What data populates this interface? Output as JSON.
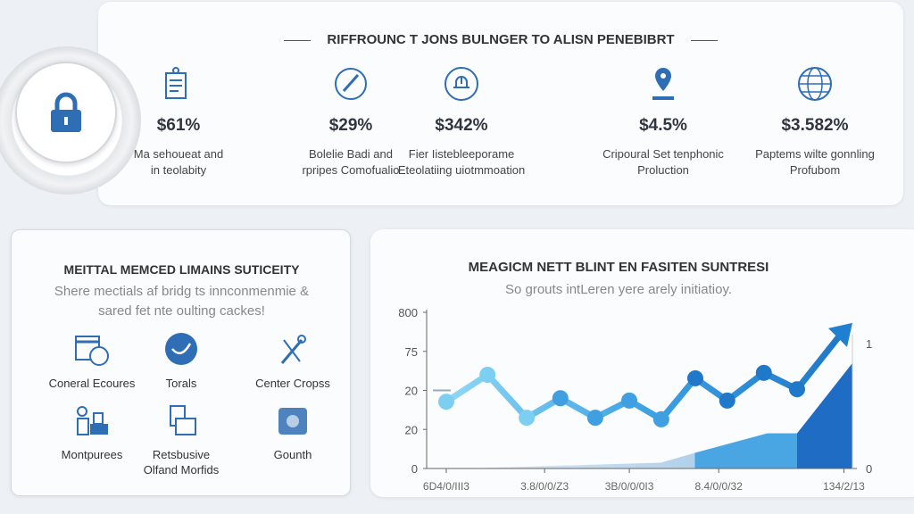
{
  "header": {
    "title": "RIFFROUNC T JONS BULNGER TO ALISN PENEBIBRT"
  },
  "stats": [
    {
      "icon": "document-icon",
      "value": "$61%",
      "desc": [
        "Ma sehoueat and",
        "in teolabity"
      ]
    },
    {
      "icon": "gauge-icon",
      "value": "$29%",
      "desc": [
        "Bolelie Badi and",
        "rpripes Comofualio"
      ]
    },
    {
      "icon": "cloud-upload-icon",
      "value": "$342%",
      "desc": [
        "Fier Iistebleeporame",
        "Eteolatiing uiotmmoation"
      ]
    },
    {
      "icon": "location-pin-icon",
      "value": "$4.5%",
      "desc": [
        "Cripoural Set tenphonic",
        "Proluction"
      ]
    },
    {
      "icon": "globe-icon",
      "value": "$3.582%",
      "desc": [
        "Paptems wilte gonnling",
        "Profubom"
      ]
    }
  ],
  "left_panel": {
    "title": "MEITTAL MEMCED LIMAINS SUTICEITY",
    "subtitle": [
      "Shere mectials af bridg ts innconmenmie &",
      "sared fet nte oulting cackes!"
    ],
    "features": [
      {
        "icon": "calendar-icon",
        "label": [
          "Coneral Ecoures"
        ]
      },
      {
        "icon": "bird-badge-icon",
        "label": [
          "Torals"
        ]
      },
      {
        "icon": "tools-icon",
        "label": [
          "Center Cropss"
        ]
      },
      {
        "icon": "devices-icon",
        "label": [
          "Montpurees"
        ]
      },
      {
        "icon": "files-icon",
        "label": [
          "Retsbusive",
          "Olfand Morfids"
        ]
      },
      {
        "icon": "media-icon",
        "label": [
          "Gounth"
        ]
      }
    ]
  },
  "colors": {
    "accent": "#2f6db5",
    "light": "#7fd0f0",
    "mid": "#3b9ee0",
    "dark": "#1f6cc4"
  },
  "chart_data": {
    "type": "line",
    "title": "MEAGICM NETT BLINT EN FASITEN SUNTRESI",
    "subtitle": "So grouts intLeren yere arely initiatioy.",
    "y_ticks": [
      {
        "level": 0,
        "label": "0"
      },
      {
        "level": 1,
        "label": "20"
      },
      {
        "level": 2,
        "label": "20"
      },
      {
        "level": 3,
        "label": "75"
      },
      {
        "level": 4,
        "label": "800"
      }
    ],
    "y_right_ticks": [
      {
        "level": 3.2,
        "label": "1"
      },
      {
        "level": 0,
        "label": "0"
      }
    ],
    "x_ticks": [
      {
        "x": 0.46,
        "label": "6D4/0/III3"
      },
      {
        "x": 2.77,
        "label": "3.8/0/0/Z3"
      },
      {
        "x": 4.76,
        "label": "3B/0/0/0I3"
      },
      {
        "x": 6.86,
        "label": "8.4/0/0/32"
      },
      {
        "x": 9.8,
        "label": "134/2/13"
      }
    ],
    "xlim": [
      0,
      10
    ],
    "ylim": [
      0,
      4
    ],
    "series": [
      {
        "name": "line",
        "x": [
          0.46,
          1.43,
          2.35,
          3.14,
          3.96,
          4.76,
          5.51,
          6.31,
          7.06,
          7.92,
          8.7
        ],
        "y": [
          1.71,
          2.4,
          1.3,
          1.8,
          1.3,
          1.74,
          1.26,
          2.31,
          1.74,
          2.45,
          2.03
        ],
        "arrow_end": [
          10,
          3.73
        ]
      },
      {
        "name": "area",
        "x": [
          0.9,
          5.5,
          6.3,
          8.0,
          8.7,
          10
        ],
        "y": [
          0,
          0.15,
          0.4,
          0.9,
          0.9,
          2.7
        ]
      }
    ],
    "grid": false
  }
}
